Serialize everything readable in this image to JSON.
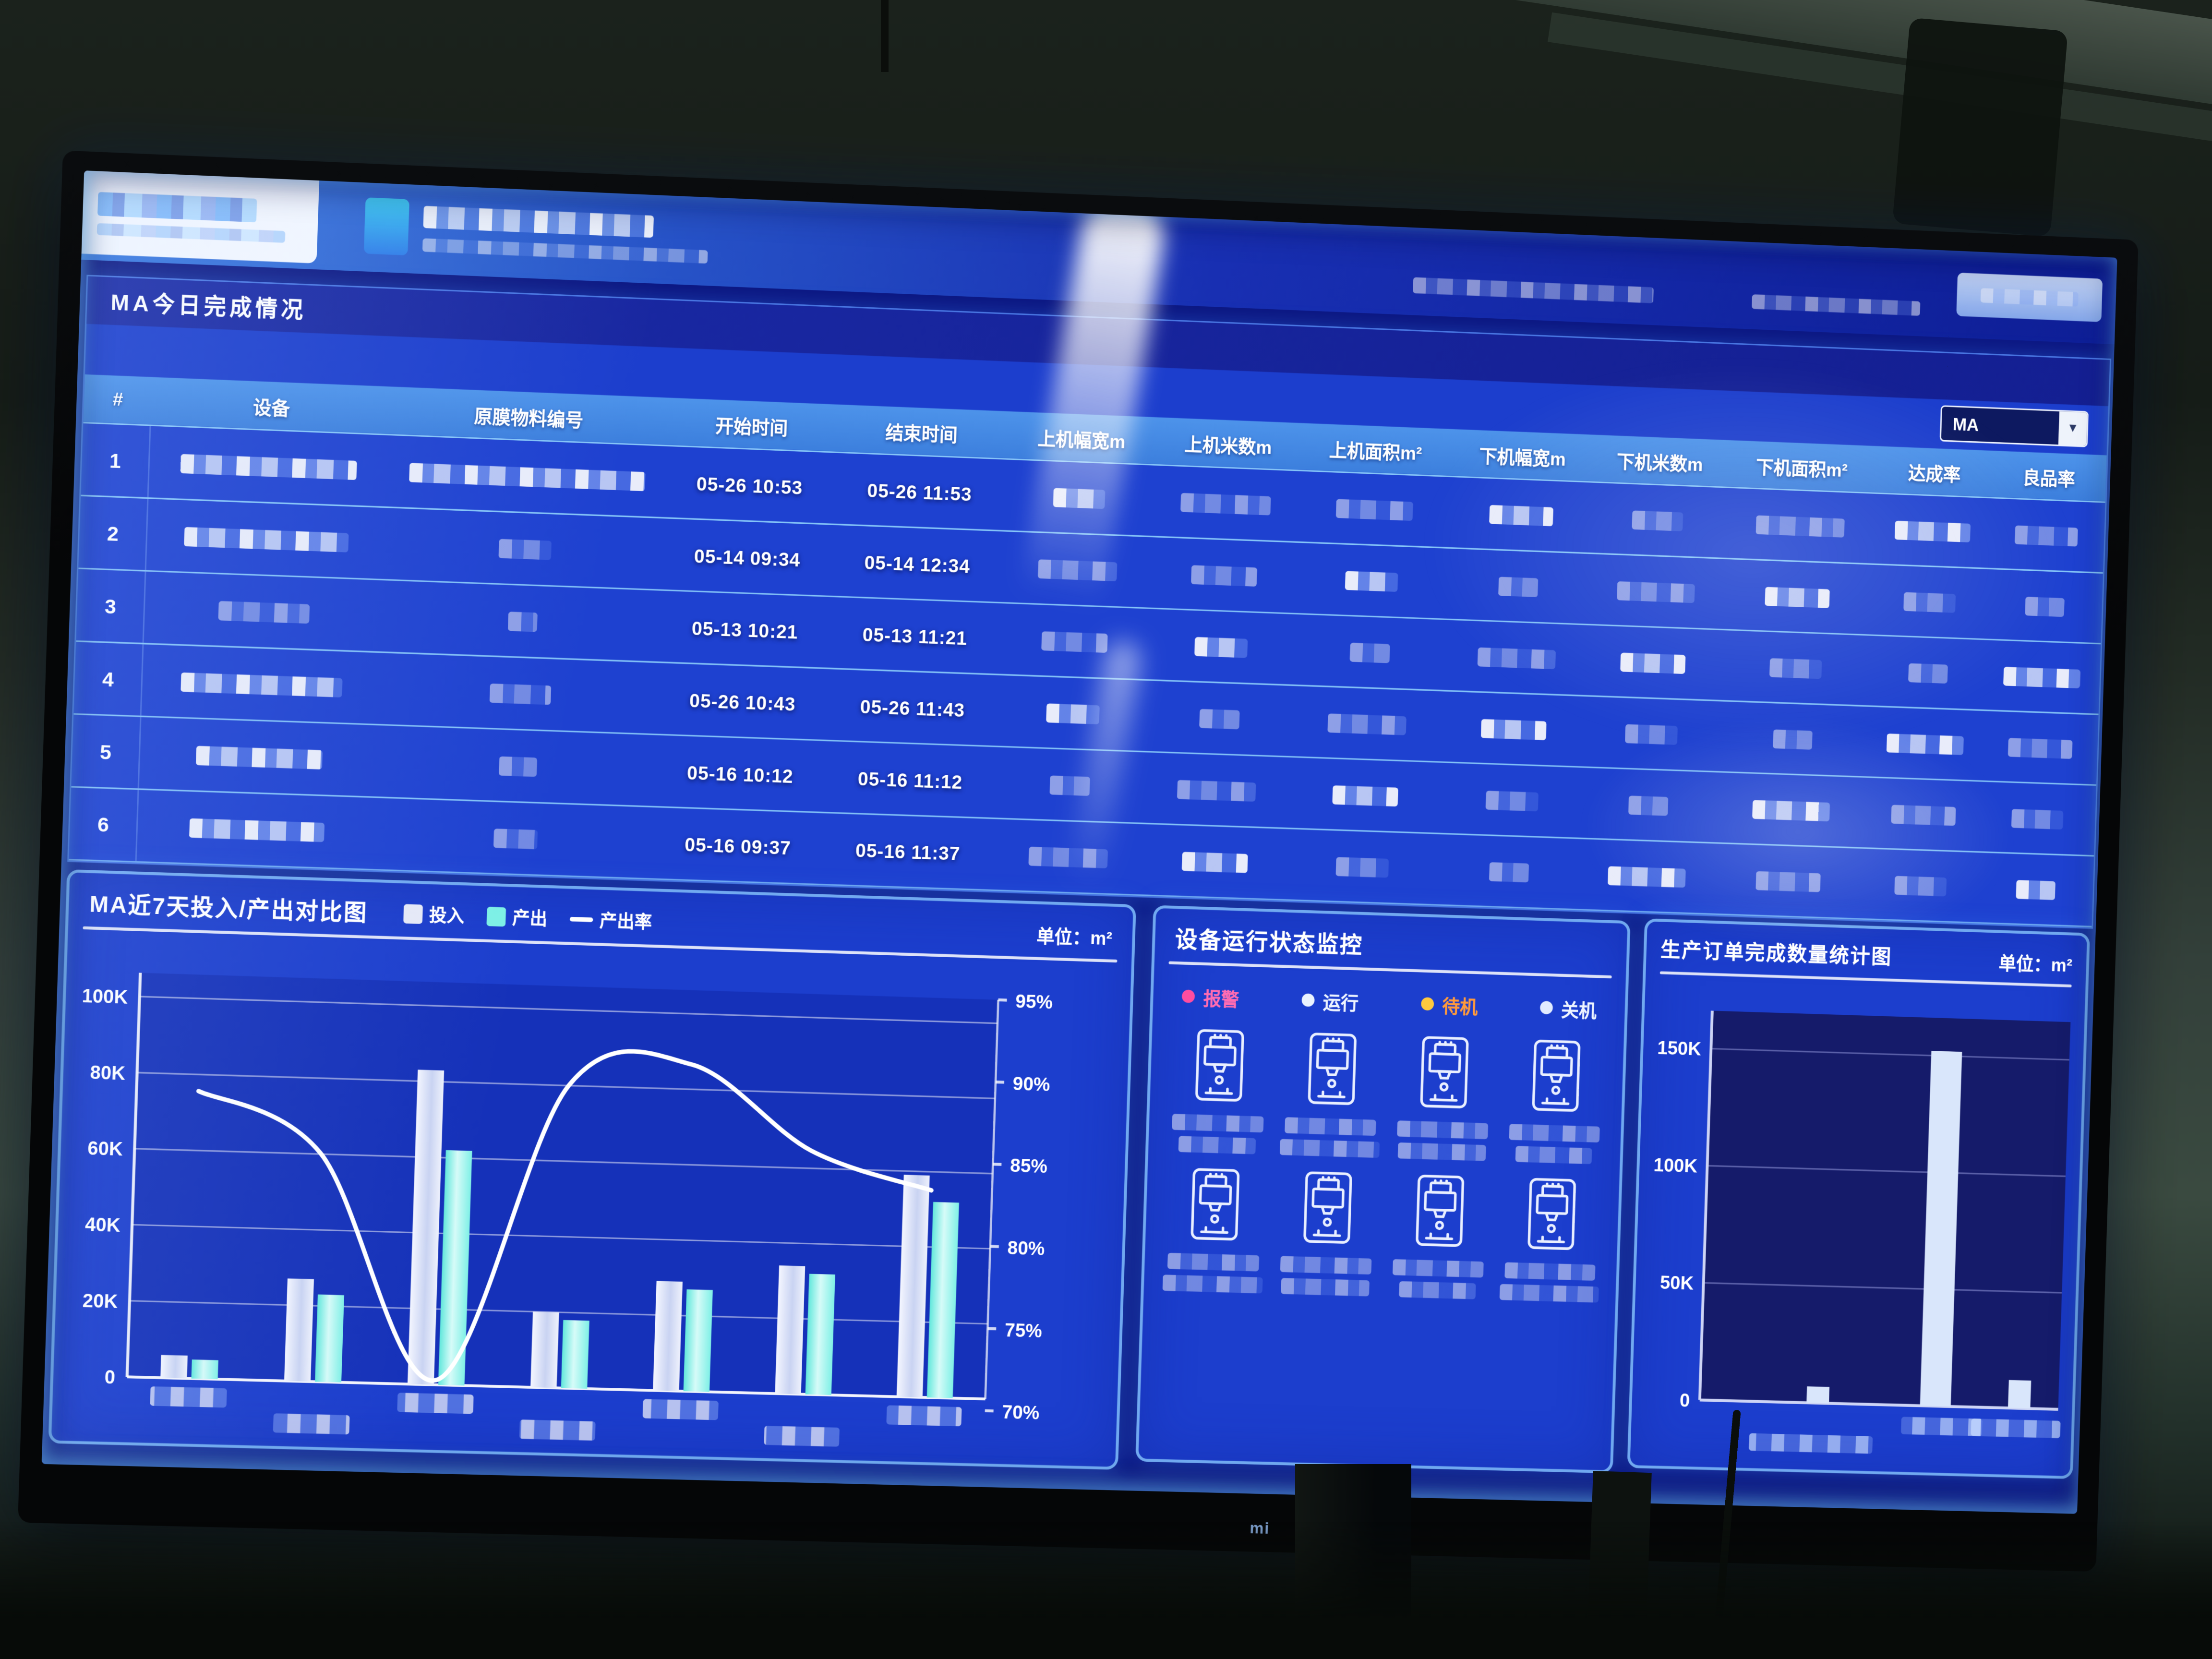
{
  "tv": {
    "brand_logo": "mi"
  },
  "table": {
    "title": "MA今日完成情况",
    "filter_value": "MA",
    "filter_caret_icon": "▾",
    "columns": [
      "#",
      "设备",
      "原膜物料编号",
      "开始时间",
      "结束时间",
      "上机幅宽m",
      "上机米数m",
      "上机面积m²",
      "下机幅宽m",
      "下机米数m",
      "下机面积m²",
      "达成率",
      "良品率"
    ],
    "rows": [
      {
        "num": "1",
        "start": "05-26 10:53",
        "end": "05-26 11:53"
      },
      {
        "num": "2",
        "start": "05-14 09:34",
        "end": "05-14 12:34"
      },
      {
        "num": "3",
        "start": "05-13 10:21",
        "end": "05-13 11:21"
      },
      {
        "num": "4",
        "start": "05-26 10:43",
        "end": "05-26 11:43"
      },
      {
        "num": "5",
        "start": "05-16 10:12",
        "end": "05-16 11:12"
      },
      {
        "num": "6",
        "start": "05-16 09:37",
        "end": "05-16 11:37"
      }
    ],
    "blurred_columns": [
      "设备",
      "原膜物料编号",
      "上机幅宽m",
      "上机米数m",
      "上机面积m²",
      "下机幅宽m",
      "下机米数m",
      "下机面积m²",
      "达成率",
      "良品率"
    ]
  },
  "chart_data": [
    {
      "id": "io",
      "type": "bar",
      "title": "MA近7天投入/产出对比图",
      "unit_label": "单位：m²",
      "categories": [
        "",
        "",
        "",
        "",
        "",
        "",
        ""
      ],
      "x_labels_blurred": true,
      "series": [
        {
          "name": "投入",
          "color": "#e6e9f7",
          "values": [
            6000,
            27000,
            83000,
            20000,
            29000,
            34000,
            59000
          ]
        },
        {
          "name": "产出",
          "color": "#7df0e6",
          "values": [
            5000,
            23000,
            62000,
            18000,
            27000,
            32000,
            52000
          ]
        }
      ],
      "line_series": {
        "name": "产出率",
        "color": "#ffffff",
        "axis": "right",
        "values_pct": [
          88,
          84.5,
          71,
          89,
          90.5,
          85.5,
          83.3
        ]
      },
      "left_axis": {
        "ticks": [
          "100K",
          "80K",
          "60K",
          "40K",
          "20K",
          "0"
        ],
        "range": [
          0,
          100000
        ]
      },
      "right_axis": {
        "ticks": [
          "95%",
          "90%",
          "85%",
          "80%",
          "75%",
          "70%"
        ],
        "range_pct": [
          70,
          95
        ]
      },
      "grid": true,
      "legend_position": "top"
    },
    {
      "id": "orders",
      "type": "bar",
      "title": "生产订单完成数量统计图",
      "unit_label": "单位：m²",
      "y_ticks": [
        "150K",
        "100K",
        "50K",
        "0"
      ],
      "ylim": [
        0,
        160000
      ],
      "values": [
        7000,
        152000,
        12000
      ],
      "bar_color": "#d9e6fb",
      "x_labels_blurred": true,
      "grid": true
    }
  ],
  "status_panel": {
    "title": "设备运行状态监控",
    "legend": [
      {
        "label": "报警",
        "color": "#ff4da0",
        "text_color": "#ff6cb2"
      },
      {
        "label": "运行",
        "color": "#eaf3ff",
        "text_color": "#eef4ff"
      },
      {
        "label": "待机",
        "color": "#ffc93e",
        "text_color": "#ff9a3c"
      },
      {
        "label": "关机",
        "color": "#e2ebff",
        "text_color": "#eef4ff"
      }
    ],
    "machines": {
      "rows": 2,
      "cols": 4,
      "count": 8,
      "labels_blurred": true
    }
  }
}
